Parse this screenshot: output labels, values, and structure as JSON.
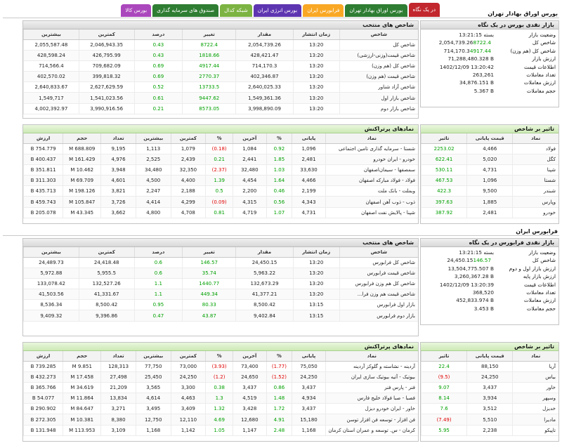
{
  "tabs": [
    {
      "label": "در یک نگاه",
      "color": "#c1272d",
      "active": true
    },
    {
      "label": "بورس اوراق بهادار تهران",
      "color": "#2e7d32",
      "active": false
    },
    {
      "label": "فرابورس ایران",
      "color": "#f9a825",
      "active": false
    },
    {
      "label": "بورس انرژی ایران",
      "color": "#5e35b1",
      "active": false
    },
    {
      "label": "شبکه کدال",
      "color": "#7cb342",
      "active": false
    },
    {
      "label": "صندوق های سرمایه گذاری",
      "color": "#2e7d32",
      "active": false
    },
    {
      "label": "بورس کالا",
      "color": "#ab47bc",
      "active": false
    }
  ],
  "tehran": {
    "section_title": "بورس اوراق بهادار تهران",
    "summary": {
      "title": "بازار نقدی بورس در یک نگاه",
      "rows": [
        {
          "label": "وضعیت بازار",
          "value": "بسته 13:21:15",
          "change": ""
        },
        {
          "label": "شاخص کل",
          "value": "2,054,739.26",
          "change": "8722.4"
        },
        {
          "label": "شاخص کل (هم وزن)",
          "value": "714,170.3",
          "change": "4917.44"
        },
        {
          "label": "ارزش بازار",
          "value": "71,288,480.328 B",
          "change": ""
        },
        {
          "label": "اطلاعات قیمت",
          "value": "1402/12/09 13:20:42",
          "change": ""
        },
        {
          "label": "تعداد معاملات",
          "value": "263,261",
          "change": ""
        },
        {
          "label": "ارزش معاملات",
          "value": "34,876.151 B",
          "change": ""
        },
        {
          "label": "حجم معاملات",
          "value": "5.367 B",
          "change": ""
        }
      ]
    },
    "indices": {
      "title": "شاخص های منتخب",
      "headers": [
        "شاخص",
        "زمان انتشار",
        "مقدار",
        "تغییر",
        "درصد",
        "کمترین",
        "بیشترین"
      ],
      "rows": [
        [
          "شاخص کل",
          "13:20",
          "2,054,739.26",
          "8722.4",
          "0.43",
          "2,046,943.35",
          "2,055,587.48"
        ],
        [
          "شاخص قیمت(وزنی-ارزشی)",
          "13:20",
          "428,421.47",
          "1818.66",
          "0.43",
          "426,795.99",
          "428,598.24"
        ],
        [
          "شاخص کل (هم وزن)",
          "13:20",
          "714,170.3",
          "4917.44",
          "0.69",
          "709,682.09",
          "714,566.4"
        ],
        [
          "شاخص قیمت (هم وزن)",
          "13:20",
          "402,346.87",
          "2770.37",
          "0.69",
          "399,818.32",
          "402,570.02"
        ],
        [
          "شاخص آزاد شناور",
          "13:20",
          "2,640,025.33",
          "13733.5",
          "0.52",
          "2,627,629.59",
          "2,640,833.67"
        ],
        [
          "شاخص بازار اول",
          "13:20",
          "1,549,361.36",
          "9447.62",
          "0.61",
          "1,541,023.56",
          "1,549,717"
        ],
        [
          "شاخص بازار دوم",
          "13:20",
          "3,998,890.09",
          "8573.05",
          "0.21",
          "3,990,916.56",
          "4,002,392.97"
        ]
      ]
    },
    "impact": {
      "title": "تاثیر بر شاخص",
      "headers": [
        "نماد",
        "قیمت پایانی",
        "تاثیر"
      ],
      "rows": [
        [
          "فولاد",
          "4,466",
          "2253.02"
        ],
        [
          "کگل",
          "5,020",
          "622.41"
        ],
        [
          "شپنا",
          "4,731",
          "530.11"
        ],
        [
          "شستا",
          "1,096",
          "467.53"
        ],
        [
          "شبندر",
          "9,500",
          "422.3"
        ],
        [
          "وپارس",
          "1,885",
          "397.63"
        ],
        [
          "خودرو",
          "2,481",
          "387.92"
        ]
      ]
    },
    "symbols": {
      "title": "نمادهای پرتراکنش",
      "headers": [
        "نماد",
        "پایانی",
        "%",
        "آخرین",
        "%",
        "کمترین",
        "بیشترین",
        "تعداد",
        "حجم",
        "ارزش"
      ],
      "rows": [
        [
          "شستا - سرمایه گذاری تامین اجتماعی",
          "1,096",
          "0.92",
          "1,084",
          "(0.18)",
          "1,079",
          "1,113",
          "9,195",
          "688.809 M",
          "754.779 B"
        ],
        [
          "خودرو - ایران‌ خودرو",
          "2,481",
          "1.85",
          "2,441",
          "0.21",
          "2,439",
          "2,525",
          "4,976",
          "161.429 M",
          "400.437 B"
        ],
        [
          "سمصفها - سیمان‌اصفهان",
          "33,630",
          "1.03",
          "32,480",
          "(2.37)",
          "32,350",
          "34,480",
          "3,948",
          "10.462 M",
          "351.811 B"
        ],
        [
          "فولاد - فولاد مبارکه اصفهان",
          "4,466",
          "1.64",
          "4,454",
          "1.39",
          "4,400",
          "4,500",
          "4,601",
          "69.709 M",
          "311.303 B"
        ],
        [
          "وبملت - بانک ملت",
          "2,199",
          "0.46",
          "2,200",
          "0.5",
          "2,188",
          "2,247",
          "3,821",
          "198.126 M",
          "435.713 B"
        ],
        [
          "ذوب - ذوب آهن اصفهان",
          "4,343",
          "0.56",
          "4,315",
          "(0.09)",
          "4,299",
          "4,414",
          "3,726",
          "105.847 M",
          "459.743 B"
        ],
        [
          "شپنا - پالایش نفت اصفهان",
          "4,731",
          "1.07",
          "4,719",
          "0.81",
          "4,708",
          "4,800",
          "3,662",
          "43.345 M",
          "205.078 B"
        ]
      ]
    }
  },
  "farabourse": {
    "section_title": "فرابورس ایران",
    "summary": {
      "title": "بازار نقدی فرابورس در یک نگاه",
      "rows": [
        {
          "label": "وضعیت بازار",
          "value": "بسته 13:21:15",
          "change": ""
        },
        {
          "label": "شاخص کل",
          "value": "24,450.15",
          "change": "146.57"
        },
        {
          "label": "ارزش بازار اول و دوم",
          "value": "13,504,775.507 B",
          "change": ""
        },
        {
          "label": "ارزش بازار پایه",
          "value": "3,260,367.28 B",
          "change": ""
        },
        {
          "label": "اطلاعات قیمت",
          "value": "1402/12/09 13:20:39",
          "change": ""
        },
        {
          "label": "تعداد معاملات",
          "value": "368,520",
          "change": ""
        },
        {
          "label": "ارزش معاملات",
          "value": "452,833.974 B",
          "change": ""
        },
        {
          "label": "حجم معاملات",
          "value": "3.453 B",
          "change": ""
        }
      ]
    },
    "indices": {
      "title": "شاخص های منتخب",
      "headers": [
        "شاخص",
        "زمان انتشار",
        "مقدار",
        "تغییر",
        "درصد",
        "کمترین",
        "بیشترین"
      ],
      "rows": [
        [
          "شاخص کل فرابورس",
          "13:20",
          "24,450.15",
          "146.57",
          "0.6",
          "24,418.48",
          "24,489.73"
        ],
        [
          "شاخص قیمت فرابورس",
          "13:20",
          "5,963.22",
          "35.74",
          "0.6",
          "5,955.5",
          "5,972.88"
        ],
        [
          "شاخص کل هم وزن فرابورس",
          "13:20",
          "132,673.29",
          "1440.77",
          "1.1",
          "132,527.26",
          "133,078.42"
        ],
        [
          "شاخص قیمت هم وزن فرا...",
          "13:20",
          "41,377.21",
          "449.34",
          "1.1",
          "41,331.67",
          "41,503.56"
        ],
        [
          "بازار اول فرابورس",
          "13:15",
          "8,500.42",
          "80.33",
          "0.95",
          "8,500.42",
          "8,536.34"
        ],
        [
          "بازار دوم فرابورس",
          "13:15",
          "9,402.84",
          "43.87",
          "0.47",
          "9,396.86",
          "9,409.32"
        ]
      ]
    },
    "impact": {
      "title": "تاثیر بر شاخص",
      "headers": [
        "نماد",
        "قیمت پایانی",
        "تاثیر"
      ],
      "rows": [
        [
          "آریا",
          "88,150",
          "22.4"
        ],
        [
          "بیاس",
          "24,250",
          "(9.5)"
        ],
        [
          "خاور",
          "3,437",
          "9.07"
        ],
        [
          "وسپهر",
          "3,934",
          "8.14"
        ],
        [
          "خدیزل",
          "3,512",
          "7.6"
        ],
        [
          "مادیرا",
          "5,510",
          "(7.49)"
        ],
        [
          "تاپیکو",
          "2,238",
          "5.95"
        ]
      ]
    },
    "symbols": {
      "title": "نمادهای پرتراکنش",
      "headers": [
        "نماد",
        "پایانی",
        "%",
        "آخرین",
        "%",
        "کمترین",
        "بیشترین",
        "تعداد",
        "حجم",
        "ارزش"
      ],
      "rows": [
        [
          "آردینه - نشاسته و گلوکز آردینه",
          "75,050",
          "(1.77)",
          "73,400",
          "(3.93)",
          "73,000",
          "77,750",
          "128,313",
          "9.851 M",
          "739.285 B"
        ],
        [
          "بیوتیک - آتیه‌ بیوتیک‌ سازی ایران",
          "24,250",
          "(1.52)",
          "24,650",
          "(1.2)",
          "24,250",
          "25,450",
          "27,498",
          "17.458 M",
          "432.273 B"
        ],
        [
          "فنر - پارس‌ فنر",
          "3,437",
          "0.86",
          "3,437",
          "0.38",
          "3,300",
          "3,565",
          "21,209",
          "34.619 M",
          "365.766 B"
        ],
        [
          "فصبا - صبا فولاد خلیج فارس",
          "4,934",
          "1.48",
          "4,519",
          "1.3",
          "4,463",
          "4,614",
          "13,834",
          "11.864 M",
          "54.077 B"
        ],
        [
          "خاور - ایران خودرو دیزل",
          "3,437",
          "1.72",
          "3,428",
          "1.32",
          "3,409",
          "3,495",
          "3,271",
          "84.647 M",
          "290.902 B"
        ],
        [
          "فن افزار - توسعه فن افزار توسن",
          "15,180",
          "4.91",
          "12,680",
          "4.69",
          "12,110",
          "12,750",
          "8,380",
          "10.381 M",
          "272.305 B"
        ],
        [
          "کرمان - س. توسعه و عمران استان کرمان",
          "1,168",
          "2.48",
          "1,147",
          "1.05",
          "1,142",
          "1,168",
          "3,109",
          "113.953 M",
          "131.948 B"
        ]
      ]
    }
  },
  "colors": {
    "positive": "#00a000",
    "negative": "#e00000",
    "header_green": "#cde9b6"
  }
}
